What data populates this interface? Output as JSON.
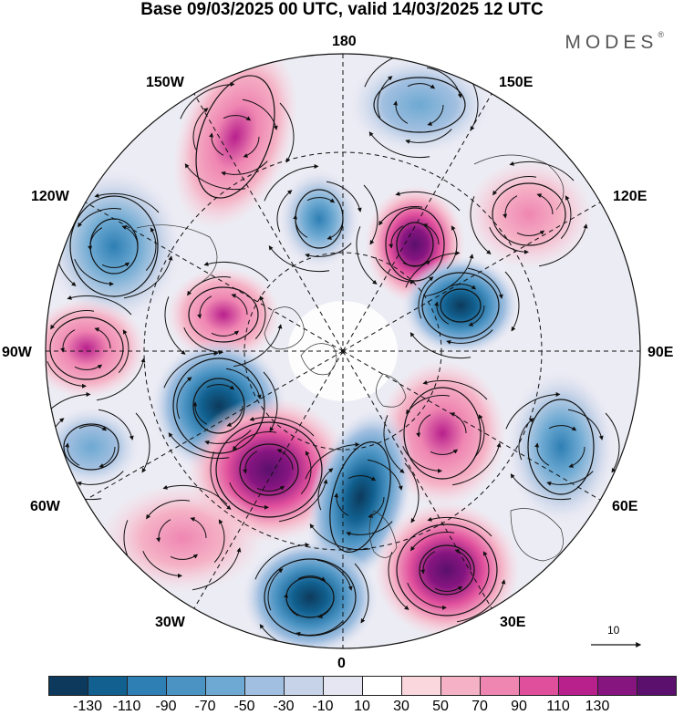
{
  "header": {
    "title": "Base 09/03/2025 00 UTC, valid 14/03/2025 12 UTC",
    "brand": "MODES",
    "brand_mark": "®"
  },
  "map": {
    "projection": "north-polar-stereographic",
    "longitude_labels": {
      "top": "180",
      "bottom": "0",
      "left": "90W",
      "right": "90E",
      "upper_left_1": "150W",
      "upper_left_2": "120W",
      "upper_right_1": "150E",
      "upper_right_2": "120E",
      "lower_left_1": "60W",
      "lower_left_2": "30W",
      "lower_right_1": "60E",
      "lower_right_2": "30E"
    },
    "gridlines": "dashed",
    "overlay": "streamlines with arrows",
    "palette": {
      "neg_strong": "#0d3a5c",
      "neg_mid": "#4a93c3",
      "neg_weak": "#c6d3e8",
      "pos_weak": "#f8d2dc",
      "pos_mid": "#ea6aa6",
      "pos_strong": "#5a106c"
    }
  },
  "colorbar": {
    "colors": [
      "#0d3a5c",
      "#11608f",
      "#2e7fb4",
      "#4a93c3",
      "#6da9d2",
      "#a1bfe0",
      "#c6d3e8",
      "#e6e6f2",
      "#ffffff",
      "#fad6dd",
      "#f5b2c6",
      "#ef86b2",
      "#e04f9c",
      "#b8208c",
      "#861580",
      "#5a106c"
    ],
    "tick_labels": [
      "-130",
      "-110",
      "-90",
      "-70",
      "-50",
      "-30",
      "-10",
      "10",
      "30",
      "50",
      "70",
      "90",
      "110",
      "130"
    ]
  },
  "reference_vector": {
    "label": "10"
  }
}
